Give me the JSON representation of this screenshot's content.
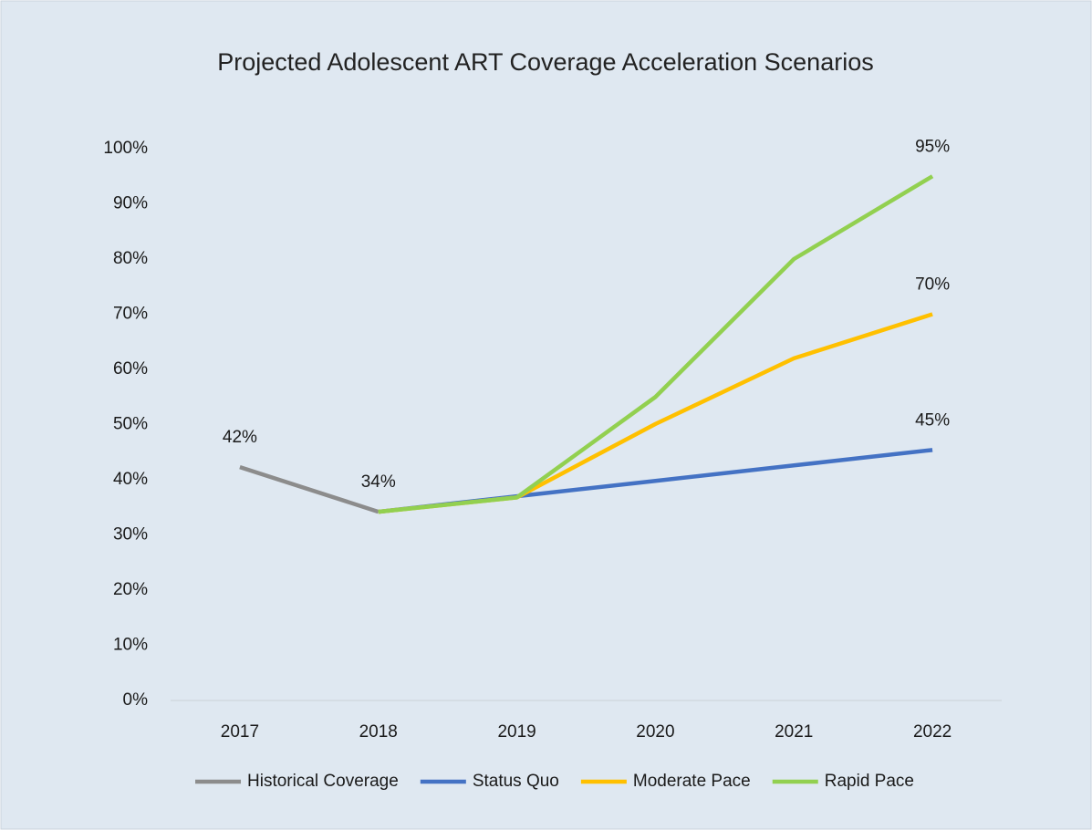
{
  "chart_data": {
    "type": "line",
    "title": "Projected Adolescent ART Coverage Acceleration Scenarios",
    "categories": [
      "2017",
      "2018",
      "2019",
      "2020",
      "2021",
      "2022"
    ],
    "series": [
      {
        "name": "Historical Coverage",
        "color": "#8c8c8c",
        "values": [
          42.3,
          34.2,
          null,
          null,
          null,
          null
        ],
        "value_labels": [
          "42%",
          "34%",
          null,
          null,
          null,
          null
        ]
      },
      {
        "name": "Status Quo",
        "color": "#4472c4",
        "values": [
          null,
          34.2,
          37.0,
          39.8,
          42.6,
          45.4
        ],
        "value_labels": [
          null,
          null,
          null,
          null,
          null,
          "45%"
        ]
      },
      {
        "name": "Moderate Pace",
        "color": "#ffc000",
        "values": [
          null,
          34.2,
          36.8,
          50.1,
          62.0,
          70.0
        ],
        "value_labels": [
          null,
          null,
          null,
          null,
          null,
          "70%"
        ]
      },
      {
        "name": "Rapid Pace",
        "color": "#92d050",
        "values": [
          null,
          34.2,
          36.8,
          55.0,
          80.0,
          95.0
        ],
        "value_labels": [
          null,
          null,
          null,
          null,
          null,
          "95%"
        ]
      }
    ],
    "ylim": [
      0,
      100
    ],
    "yticks": [
      {
        "value": 0,
        "label": "0%"
      },
      {
        "value": 10,
        "label": "10%"
      },
      {
        "value": 20,
        "label": "20%"
      },
      {
        "value": 30,
        "label": "30%"
      },
      {
        "value": 40,
        "label": "40%"
      },
      {
        "value": 50,
        "label": "50%"
      },
      {
        "value": 60,
        "label": "60%"
      },
      {
        "value": 70,
        "label": "70%"
      },
      {
        "value": 80,
        "label": "80%"
      },
      {
        "value": 90,
        "label": "90%"
      },
      {
        "value": 100,
        "label": "100%"
      }
    ],
    "grid": false,
    "legend": "bottom"
  }
}
